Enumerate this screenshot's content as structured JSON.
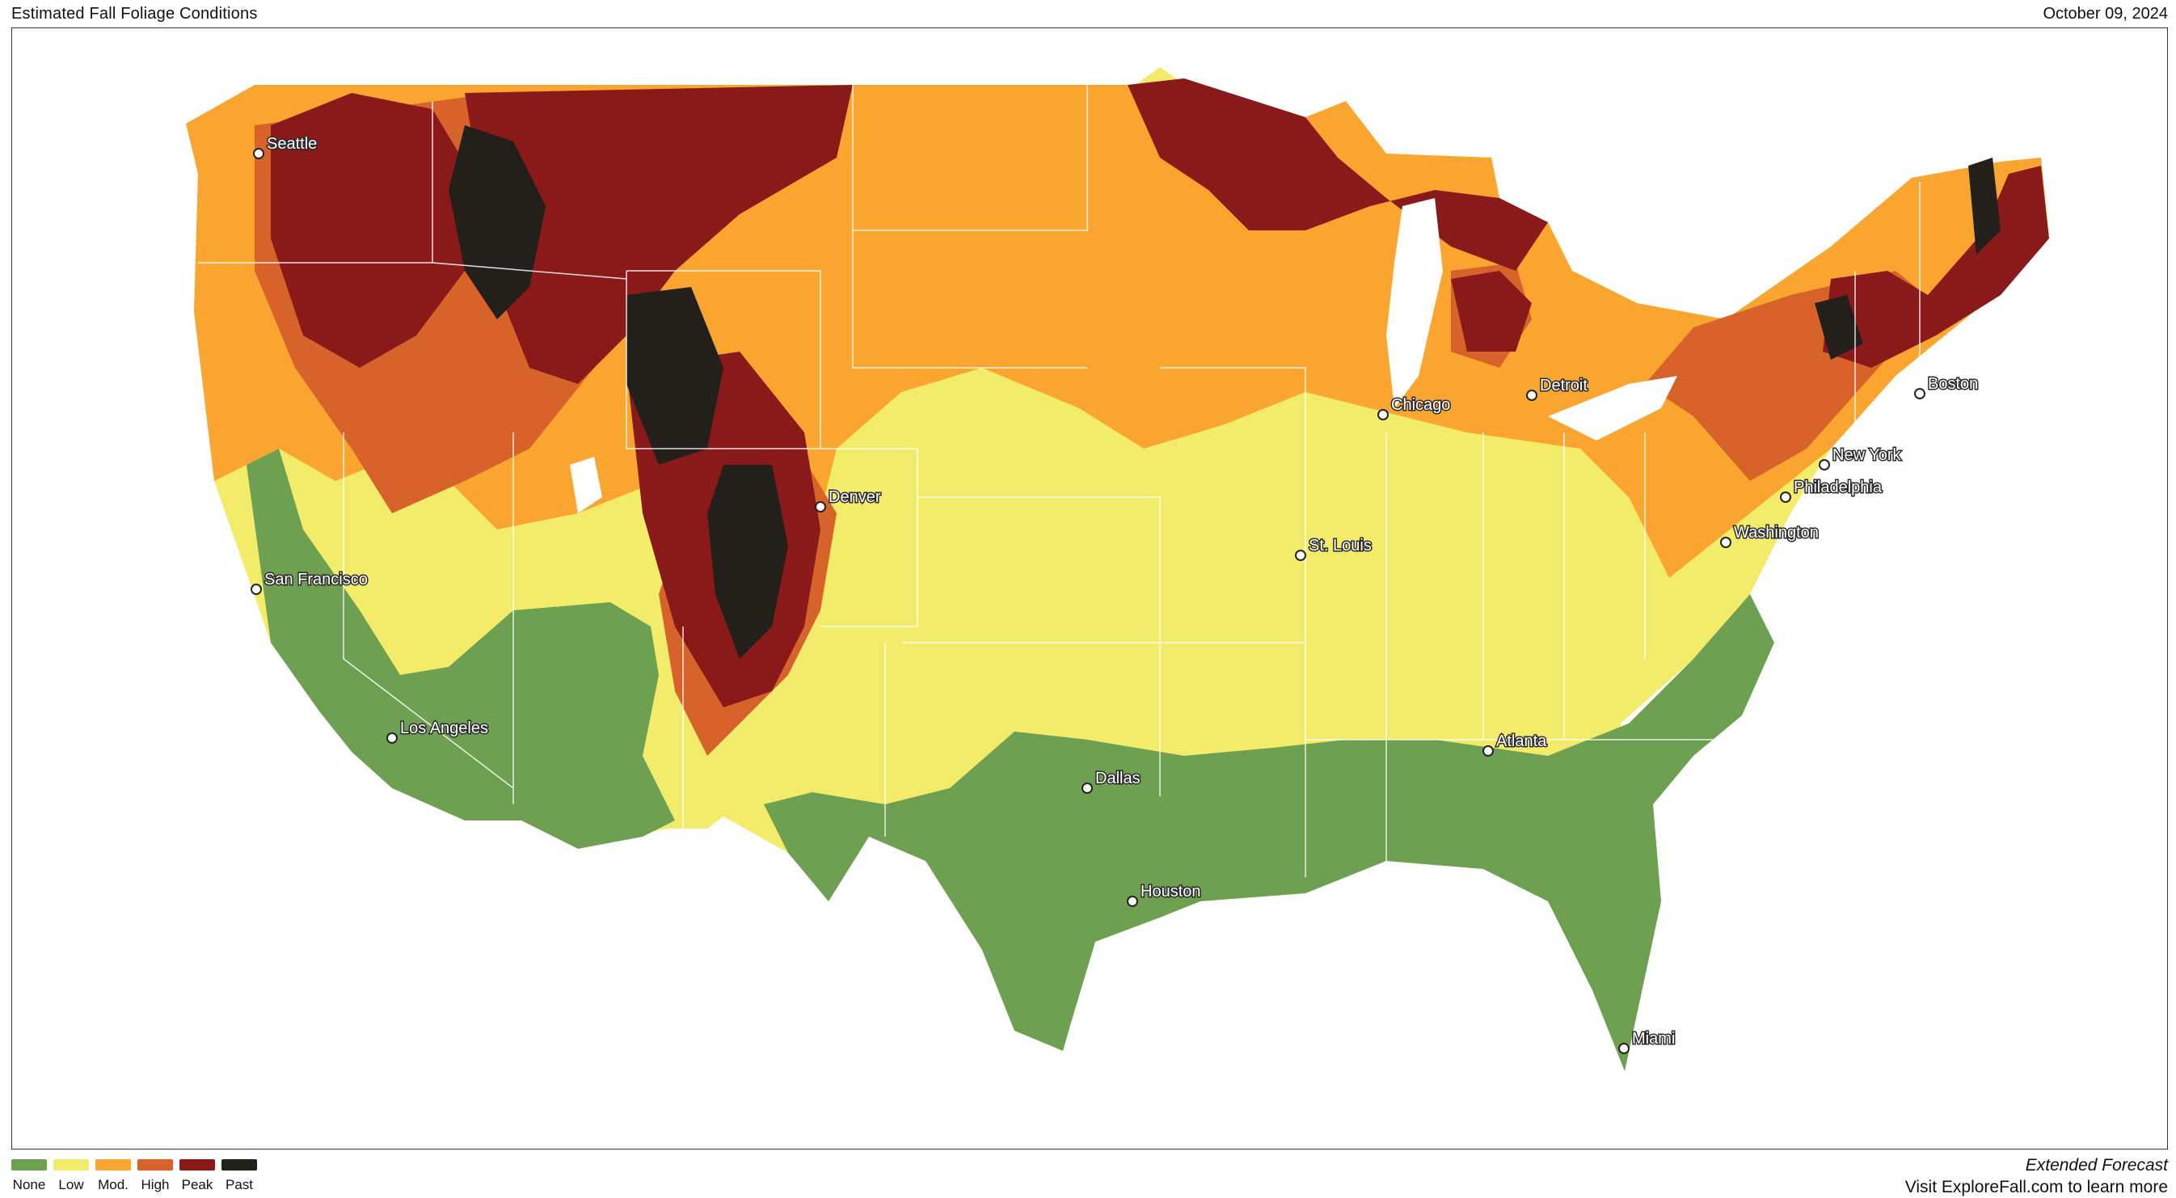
{
  "header": {
    "title": "Estimated Fall Foliage Conditions",
    "date": "October 09, 2024"
  },
  "legend": [
    {
      "label": "None",
      "color": "#6ea052"
    },
    {
      "label": "Low",
      "color": "#f3ec6a"
    },
    {
      "label": "Mod.",
      "color": "#f9a530"
    },
    {
      "label": "High",
      "color": "#d8632a"
    },
    {
      "label": "Peak",
      "color": "#8a1a1a"
    },
    {
      "label": "Past",
      "color": "#231f1a"
    }
  ],
  "cities": [
    {
      "name": "Seattle"
    },
    {
      "name": "San Francisco"
    },
    {
      "name": "Los Angeles"
    },
    {
      "name": "Denver"
    },
    {
      "name": "Dallas"
    },
    {
      "name": "Houston"
    },
    {
      "name": "St. Louis"
    },
    {
      "name": "Chicago"
    },
    {
      "name": "Detroit"
    },
    {
      "name": "Atlanta"
    },
    {
      "name": "Miami"
    },
    {
      "name": "Washington"
    },
    {
      "name": "Philadelphia"
    },
    {
      "name": "New York"
    },
    {
      "name": "Boston"
    }
  ],
  "footer": {
    "line1": "Extended Forecast",
    "line2": "Visit ExploreFall.com to learn more"
  }
}
